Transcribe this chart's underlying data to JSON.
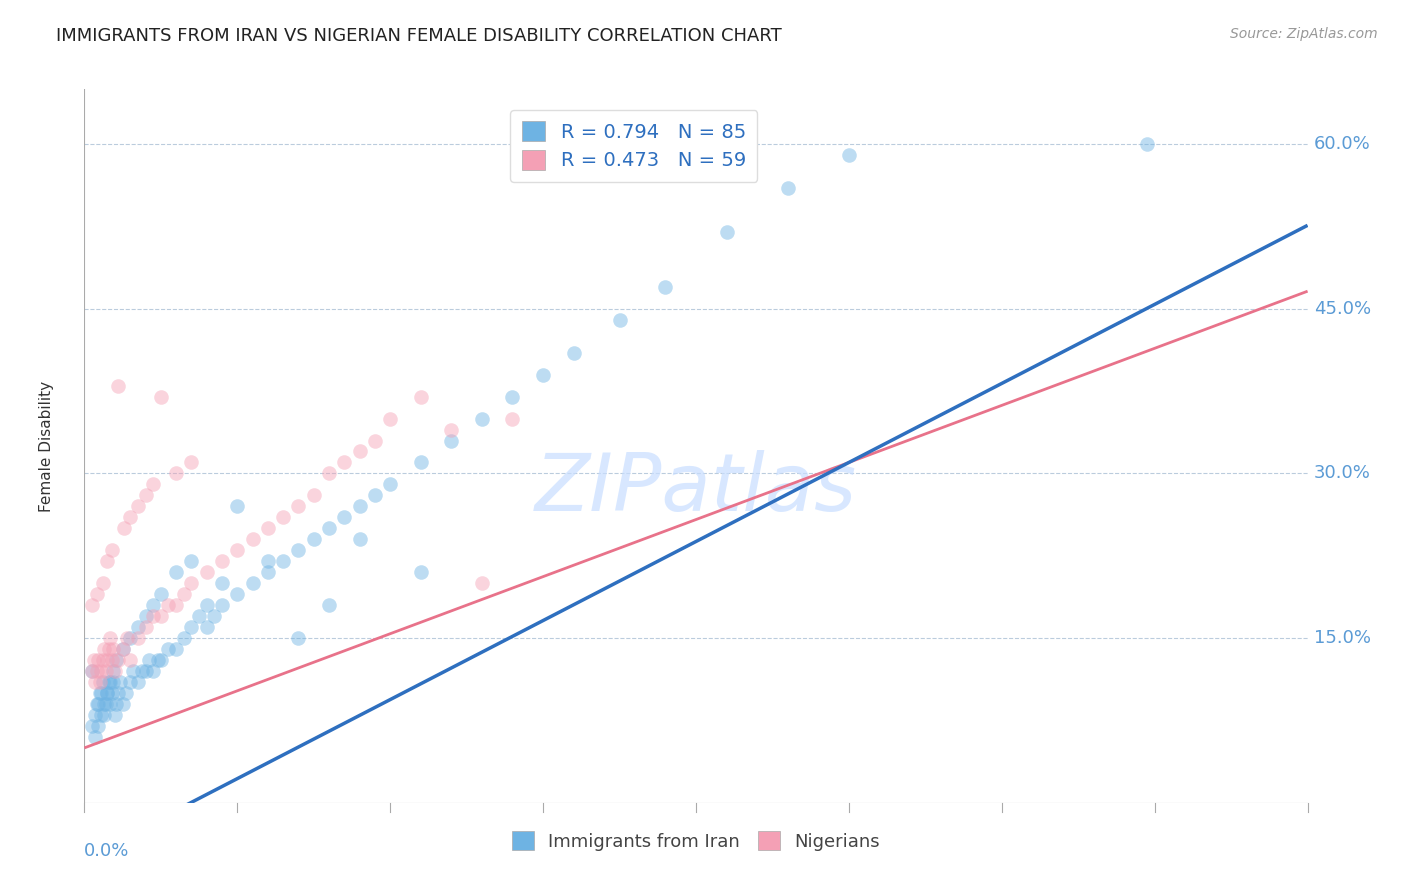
{
  "title": "IMMIGRANTS FROM IRAN VS NIGERIAN FEMALE DISABILITY CORRELATION CHART",
  "source": "Source: ZipAtlas.com",
  "ylabel": "Female Disability",
  "y_ticks": [
    0.15,
    0.3,
    0.45,
    0.6
  ],
  "y_tick_labels": [
    "15.0%",
    "30.0%",
    "45.0%",
    "60.0%"
  ],
  "x_lim": [
    0.0,
    0.8
  ],
  "y_lim": [
    0.0,
    0.65
  ],
  "legend_r1": "R = 0.794   N = 85",
  "legend_r2": "R = 0.473   N = 59",
  "blue_color": "#6EB3E3",
  "pink_color": "#F4A0B5",
  "trend_blue_color": "#2E6FBF",
  "trend_pink_color": "#E8728A",
  "watermark": "ZIPatlas",
  "blue_intercept": -0.05,
  "blue_slope": 0.72,
  "pink_intercept": 0.05,
  "pink_slope": 0.52,
  "blue_scatter_x": [
    0.005,
    0.007,
    0.008,
    0.009,
    0.01,
    0.011,
    0.012,
    0.013,
    0.014,
    0.015,
    0.016,
    0.017,
    0.018,
    0.019,
    0.02,
    0.021,
    0.022,
    0.023,
    0.025,
    0.027,
    0.03,
    0.032,
    0.035,
    0.038,
    0.04,
    0.042,
    0.045,
    0.048,
    0.05,
    0.055,
    0.06,
    0.065,
    0.07,
    0.075,
    0.08,
    0.085,
    0.09,
    0.1,
    0.11,
    0.12,
    0.13,
    0.14,
    0.15,
    0.16,
    0.17,
    0.18,
    0.19,
    0.2,
    0.22,
    0.24,
    0.26,
    0.28,
    0.3,
    0.32,
    0.35,
    0.38,
    0.42,
    0.46,
    0.5,
    0.005,
    0.007,
    0.009,
    0.011,
    0.013,
    0.015,
    0.017,
    0.019,
    0.021,
    0.025,
    0.03,
    0.035,
    0.04,
    0.045,
    0.05,
    0.06,
    0.07,
    0.08,
    0.09,
    0.1,
    0.12,
    0.14,
    0.16,
    0.18,
    0.695,
    0.22
  ],
  "blue_scatter_y": [
    0.07,
    0.08,
    0.09,
    0.09,
    0.1,
    0.1,
    0.11,
    0.08,
    0.09,
    0.1,
    0.11,
    0.09,
    0.1,
    0.11,
    0.08,
    0.09,
    0.1,
    0.11,
    0.09,
    0.1,
    0.11,
    0.12,
    0.11,
    0.12,
    0.12,
    0.13,
    0.12,
    0.13,
    0.13,
    0.14,
    0.14,
    0.15,
    0.16,
    0.17,
    0.16,
    0.17,
    0.18,
    0.19,
    0.2,
    0.21,
    0.22,
    0.23,
    0.24,
    0.25,
    0.26,
    0.27,
    0.28,
    0.29,
    0.31,
    0.33,
    0.35,
    0.37,
    0.39,
    0.41,
    0.44,
    0.47,
    0.52,
    0.56,
    0.59,
    0.12,
    0.06,
    0.07,
    0.08,
    0.09,
    0.1,
    0.11,
    0.12,
    0.13,
    0.14,
    0.15,
    0.16,
    0.17,
    0.18,
    0.19,
    0.21,
    0.22,
    0.18,
    0.2,
    0.27,
    0.22,
    0.15,
    0.18,
    0.24,
    0.6,
    0.21
  ],
  "pink_scatter_x": [
    0.005,
    0.006,
    0.007,
    0.008,
    0.009,
    0.01,
    0.011,
    0.012,
    0.013,
    0.014,
    0.015,
    0.016,
    0.017,
    0.018,
    0.019,
    0.02,
    0.022,
    0.025,
    0.028,
    0.03,
    0.035,
    0.04,
    0.045,
    0.05,
    0.055,
    0.06,
    0.065,
    0.07,
    0.08,
    0.09,
    0.1,
    0.11,
    0.12,
    0.13,
    0.14,
    0.15,
    0.16,
    0.17,
    0.18,
    0.19,
    0.2,
    0.22,
    0.24,
    0.26,
    0.28,
    0.005,
    0.008,
    0.012,
    0.015,
    0.018,
    0.022,
    0.026,
    0.03,
    0.035,
    0.04,
    0.045,
    0.05,
    0.06,
    0.07
  ],
  "pink_scatter_y": [
    0.12,
    0.13,
    0.11,
    0.12,
    0.13,
    0.11,
    0.12,
    0.13,
    0.14,
    0.12,
    0.13,
    0.14,
    0.15,
    0.13,
    0.14,
    0.12,
    0.13,
    0.14,
    0.15,
    0.13,
    0.15,
    0.16,
    0.17,
    0.17,
    0.18,
    0.18,
    0.19,
    0.2,
    0.21,
    0.22,
    0.23,
    0.24,
    0.25,
    0.26,
    0.27,
    0.28,
    0.3,
    0.31,
    0.32,
    0.33,
    0.35,
    0.37,
    0.34,
    0.2,
    0.35,
    0.18,
    0.19,
    0.2,
    0.22,
    0.23,
    0.38,
    0.25,
    0.26,
    0.27,
    0.28,
    0.29,
    0.37,
    0.3,
    0.31
  ]
}
